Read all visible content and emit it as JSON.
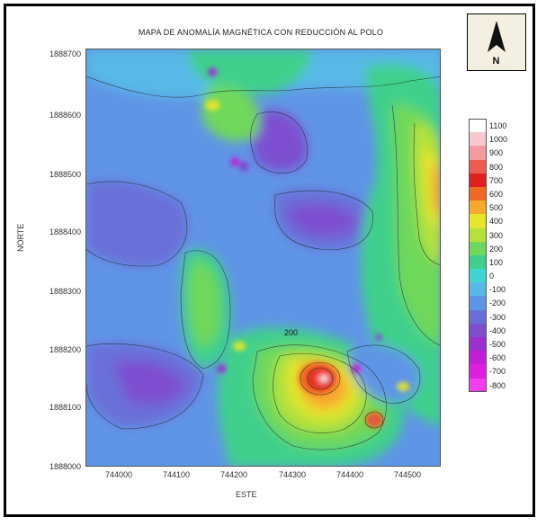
{
  "map": {
    "title": "MAPA DE ANOMALÍA MAGNÉTICA CON REDUCCIÓN AL POLO",
    "x_axis_title": "ESTE",
    "y_axis_title": "NORTE",
    "x_ticks": [
      "744000",
      "744100",
      "744200",
      "744300",
      "744400",
      "744500"
    ],
    "y_ticks": [
      "1888700",
      "1888600",
      "1888500",
      "1888400",
      "1888300",
      "1888200",
      "1888100",
      "1888000"
    ],
    "contour_label": "200",
    "north_arrow_letter": "N",
    "north_arrow_icon": "north-arrow-icon"
  },
  "legend": {
    "items": [
      {
        "label": "1100",
        "color": "#ffffff"
      },
      {
        "label": "1000",
        "color": "#f6c9cf"
      },
      {
        "label": "900",
        "color": "#f59a9f"
      },
      {
        "label": "800",
        "color": "#ee5b52"
      },
      {
        "label": "700",
        "color": "#e0201d"
      },
      {
        "label": "600",
        "color": "#f06a25"
      },
      {
        "label": "500",
        "color": "#f7a92d"
      },
      {
        "label": "400",
        "color": "#e6e52c"
      },
      {
        "label": "300",
        "color": "#b5e13a"
      },
      {
        "label": "200",
        "color": "#6fd85a"
      },
      {
        "label": "100",
        "color": "#3fd08c"
      },
      {
        "label": "0",
        "color": "#3fd6cf"
      },
      {
        "label": "-100",
        "color": "#58b9e6"
      },
      {
        "label": "-200",
        "color": "#5f95e6"
      },
      {
        "label": "-300",
        "color": "#6a6fd8"
      },
      {
        "label": "-400",
        "color": "#7d4fd0"
      },
      {
        "label": "-500",
        "color": "#9b2fd0"
      },
      {
        "label": "-600",
        "color": "#c21fd5"
      },
      {
        "label": "-700",
        "color": "#e01ee0"
      },
      {
        "label": "-800",
        "color": "#f53df0"
      }
    ]
  },
  "colors": {
    "background_blue": "#5f95e6",
    "anomaly_high": "#e0201d",
    "anomaly_low": "#9b2fd0"
  }
}
